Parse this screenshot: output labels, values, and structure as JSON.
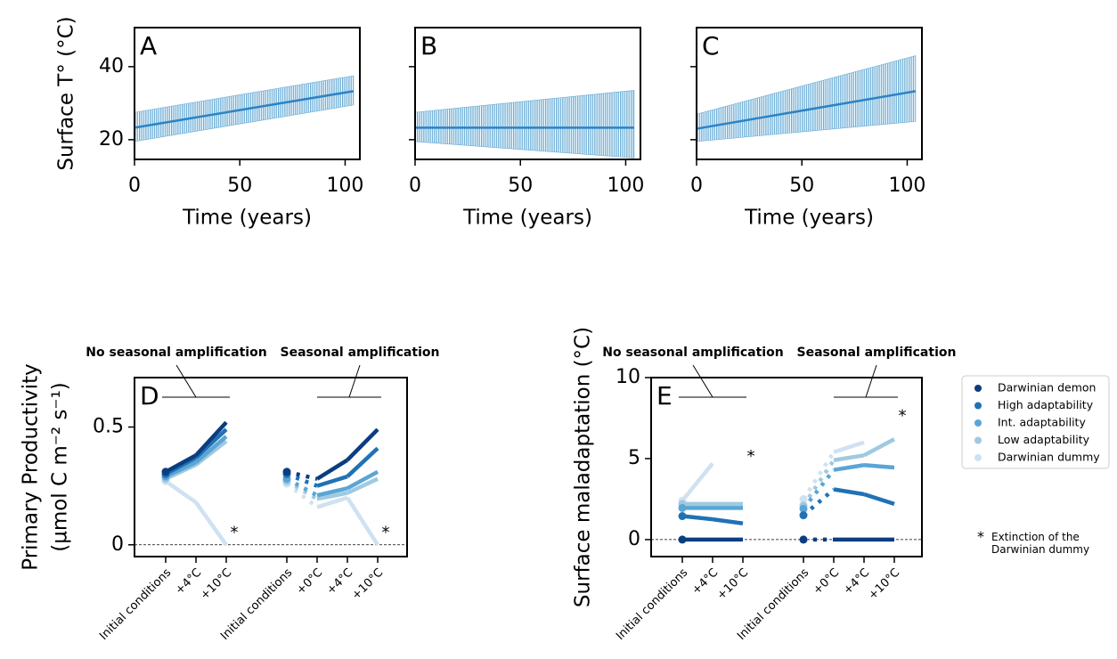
{
  "chart_data": [
    {
      "type": "line",
      "label": "A",
      "ylabel": "Surface T° (°C)",
      "xlabel": "Time (years)",
      "x": [
        0,
        104
      ],
      "xlim": [
        0,
        107
      ],
      "xticks": [
        0,
        50,
        100
      ],
      "ylim": [
        14.6,
        50.7
      ],
      "yticks": [
        20,
        40
      ],
      "series": [
        {
          "color": "#6baed6",
          "lower": [
            19.5,
            29.5
          ],
          "upper": [
            27.5,
            37.5
          ]
        },
        {
          "color": "#2b83c6",
          "values": [
            23.3,
            33.3
          ]
        }
      ]
    },
    {
      "type": "line",
      "label": "B",
      "xlabel": "Time (years)",
      "x": [
        0,
        104
      ],
      "xlim": [
        0,
        107
      ],
      "xticks": [
        0,
        50,
        100
      ],
      "ylim": [
        14.6,
        50.7
      ],
      "yticks": [
        20,
        40
      ],
      "ytick_labels": false,
      "series": [
        {
          "color": "#6baed6",
          "lower": [
            19.5,
            15
          ],
          "upper": [
            27.5,
            33.5
          ]
        },
        {
          "color": "#2b83c6",
          "values": [
            23.3,
            23.3
          ]
        }
      ]
    },
    {
      "type": "line",
      "label": "C",
      "xlabel": "Time (years)",
      "x": [
        0,
        104
      ],
      "xlim": [
        0,
        107
      ],
      "xticks": [
        0,
        50,
        100
      ],
      "ylim": [
        14.6,
        50.7
      ],
      "yticks": [
        20,
        40
      ],
      "ytick_labels": false,
      "series": [
        {
          "color": "#6baed6",
          "lower": [
            19.5,
            25
          ],
          "upper": [
            27,
            43
          ]
        },
        {
          "color": "#2b83c6",
          "values": [
            23,
            33.3
          ]
        }
      ]
    },
    {
      "type": "line",
      "label": "D",
      "ylabel": [
        "Primary Productivity",
        "(µmol C m⁻² s⁻¹)"
      ],
      "categories": [
        "Initial conditions",
        "+4°C",
        "+10°C",
        null,
        "Initial conditions",
        "+0°C",
        "+4°C",
        "+10°C"
      ],
      "groups": [
        "No seasonal amplification",
        "Seasonal amplification"
      ],
      "ylim": [
        -0.05,
        0.71
      ],
      "yticks": [
        0,
        0.5
      ],
      "reference_line": 0,
      "annotations": [
        {
          "text": "*",
          "category": 2,
          "y": 0.05
        },
        {
          "text": "*",
          "category": 7,
          "y": 0.05
        }
      ],
      "series": [
        {
          "color": "#0b3d80",
          "values": [
            0.31,
            0.38,
            0.52,
            null,
            0.31,
            0.28,
            0.36,
            0.49
          ]
        },
        {
          "color": "#2171b5",
          "values": [
            0.3,
            0.37,
            0.49,
            null,
            0.3,
            0.25,
            0.29,
            0.41
          ]
        },
        {
          "color": "#5aa5d6",
          "values": [
            0.29,
            0.35,
            0.46,
            null,
            0.28,
            0.21,
            0.24,
            0.31
          ]
        },
        {
          "color": "#9ecae1",
          "values": [
            0.28,
            0.34,
            0.44,
            null,
            0.27,
            0.195,
            0.22,
            0.28
          ]
        },
        {
          "color": "#cfe1f2",
          "values": [
            0.27,
            0.18,
            0,
            null,
            0.26,
            0.16,
            0.2,
            0
          ]
        }
      ]
    },
    {
      "type": "line",
      "label": "E",
      "ylabel": "Surface maladaptation (°C)",
      "categories": [
        "Initial conditions",
        "+4°C",
        "+10°C",
        null,
        "Initial conditions",
        "+0°C",
        "+4°C",
        "+10°C"
      ],
      "groups": [
        "No seasonal amplification",
        "Seasonal amplification"
      ],
      "ylim": [
        -1.05,
        10
      ],
      "yticks": [
        0,
        5,
        10
      ],
      "reference_line": 0,
      "legend": "outside right",
      "annotations": [
        {
          "text": "*",
          "category": 2,
          "y": 5.1
        },
        {
          "text": "*",
          "category": 7,
          "y": 7.6
        }
      ],
      "legend_note": {
        "symbol": "*",
        "text": "Extinction of the Darwinian dummy"
      },
      "series": [
        {
          "name": "Darwinian demon",
          "color": "#0b3d80",
          "values": [
            0,
            0,
            0,
            null,
            0,
            0,
            0,
            0
          ]
        },
        {
          "name": "High adaptability",
          "color": "#2171b5",
          "values": [
            1.45,
            1.25,
            1.0,
            null,
            1.5,
            3.1,
            2.8,
            2.2
          ]
        },
        {
          "name": "Int. adaptability",
          "color": "#5aa5d6",
          "values": [
            1.95,
            1.95,
            1.95,
            null,
            1.9,
            4.3,
            4.6,
            4.45
          ]
        },
        {
          "name": "Low adaptability",
          "color": "#9ecae1",
          "values": [
            2.2,
            2.2,
            2.2,
            null,
            2.1,
            4.9,
            5.2,
            6.2
          ]
        },
        {
          "name": "Darwinian dummy",
          "color": "#cfe1f2",
          "values": [
            2.4,
            4.7,
            null,
            null,
            2.5,
            5.4,
            6.0,
            null
          ]
        }
      ]
    }
  ]
}
